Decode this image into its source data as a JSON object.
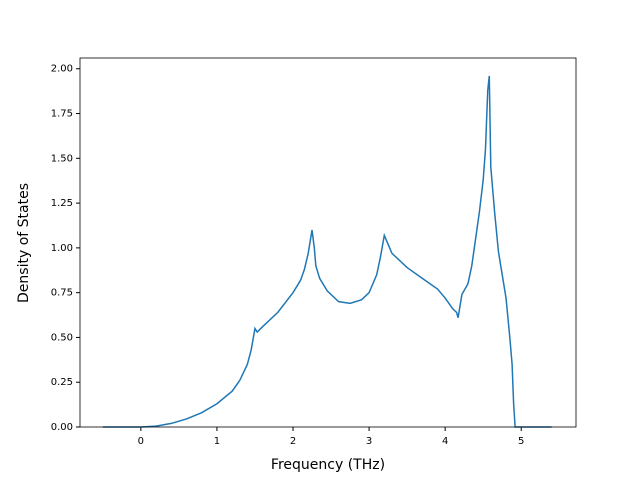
{
  "chart_data": {
    "type": "line",
    "x_label": "Frequency (THz)",
    "y_label": "Density of States",
    "x": [
      -0.5,
      0,
      0.2,
      0.4,
      0.6,
      0.8,
      1.0,
      1.2,
      1.3,
      1.4,
      1.45,
      1.5,
      1.53,
      1.6,
      1.8,
      2.0,
      2.1,
      2.15,
      2.2,
      2.25,
      2.28,
      2.3,
      2.35,
      2.45,
      2.6,
      2.75,
      2.9,
      3.0,
      3.1,
      3.15,
      3.2,
      3.25,
      3.3,
      3.5,
      3.7,
      3.9,
      4.0,
      4.05,
      4.1,
      4.15,
      4.17,
      4.22,
      4.3,
      4.35,
      4.4,
      4.45,
      4.5,
      4.53,
      4.56,
      4.58,
      4.6,
      4.65,
      4.7,
      4.8,
      4.85,
      4.88,
      4.9,
      4.92,
      5.4
    ],
    "series": [
      {
        "color": "#1f77b4",
        "values": [
          0,
          0,
          0.005,
          0.02,
          0.045,
          0.08,
          0.13,
          0.2,
          0.26,
          0.35,
          0.43,
          0.55,
          0.53,
          0.56,
          0.64,
          0.75,
          0.82,
          0.88,
          0.97,
          1.1,
          1.0,
          0.9,
          0.83,
          0.76,
          0.7,
          0.69,
          0.71,
          0.75,
          0.85,
          0.95,
          1.07,
          1.02,
          0.97,
          0.89,
          0.83,
          0.77,
          0.72,
          0.69,
          0.66,
          0.64,
          0.61,
          0.74,
          0.8,
          0.9,
          1.05,
          1.2,
          1.38,
          1.55,
          1.88,
          1.96,
          1.45,
          1.2,
          0.98,
          0.72,
          0.5,
          0.35,
          0.13,
          0,
          0
        ]
      }
    ],
    "xlim": [
      -0.8,
      5.72
    ],
    "ylim": [
      0,
      2.06
    ],
    "xticks": [
      0,
      1,
      2,
      3,
      4,
      5
    ],
    "yticks": [
      {
        "value": 0,
        "label": "0.00"
      },
      {
        "value": 0.25,
        "label": "0.25"
      },
      {
        "value": 0.5,
        "label": "0.50"
      },
      {
        "value": 0.75,
        "label": "0.75"
      },
      {
        "value": 1,
        "label": "1.00"
      },
      {
        "value": 1.25,
        "label": "1.25"
      },
      {
        "value": 1.5,
        "label": "1.50"
      },
      {
        "value": 1.75,
        "label": "1.75"
      },
      {
        "value": 2,
        "label": "2.00"
      }
    ]
  }
}
